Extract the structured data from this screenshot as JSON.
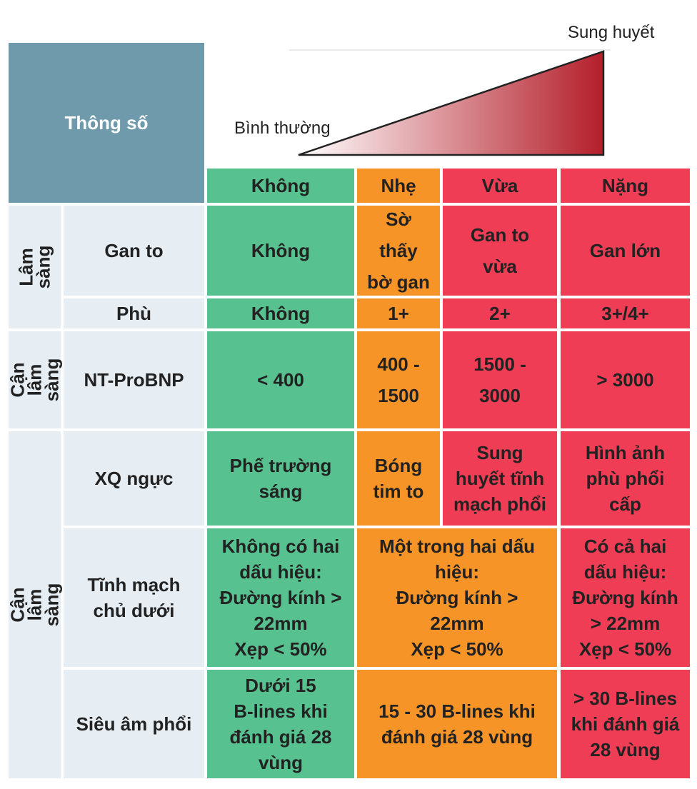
{
  "header": {
    "parameter_label": "Thông số",
    "scale": {
      "low_label": "Bình thường",
      "high_label": "Sung huyết"
    },
    "levels": [
      "Không",
      "Nhẹ",
      "Vừa",
      "Nặng"
    ]
  },
  "colors": {
    "none": "#57c18f",
    "mild": "#f79427",
    "severe": "#ef3d55",
    "header": "#6e9aab",
    "label_bg": "#e7eef3",
    "triangle_dark": "#b41f2b"
  },
  "groups": {
    "clinical": "Lâm sàng",
    "subclinical_1": "Cận lâm\nsàng",
    "subclinical_2": "Cận lâm sàng"
  },
  "rows": {
    "liver": {
      "label": "Gan to",
      "none": "Không",
      "mild": "Sờ\nthấy\nbờ gan",
      "moderate": "Gan to\nvừa",
      "severe": "Gan lớn"
    },
    "edema": {
      "label": "Phù",
      "none": "Không",
      "mild": "1+",
      "moderate": "2+",
      "severe": "3+/4+"
    },
    "bnp": {
      "label": "NT-ProBNP",
      "none": "< 400",
      "mild": "400 -\n1500",
      "moderate": "1500 -\n3000",
      "severe": "> 3000"
    },
    "xray": {
      "label": "XQ ngực",
      "none": "Phế trường\nsáng",
      "mild": "Bóng\ntim to",
      "moderate": "Sung\nhuyết tĩnh\nmạch phổi",
      "severe": "Hình ảnh\nphù phổi\ncấp"
    },
    "ivc": {
      "label": "Tĩnh mạch\nchủ dưới",
      "none": "Không có hai\ndấu hiệu:\nĐường kính >\n22mm\nXẹp < 50%",
      "mild_moderate": "Một trong hai dấu\nhiệu:\nĐường kính >\n22mm\nXẹp < 50%",
      "severe": "Có cả hai\ndấu hiệu:\nĐường kính\n> 22mm\nXẹp < 50%"
    },
    "lung_us": {
      "label": "Siêu âm phổi",
      "none": "Dưới 15\nB-lines khi\nđánh giá 28\nvùng",
      "mild_moderate": "15 - 30 B-lines khi\nđánh giá 28 vùng",
      "severe": "> 30 B-lines\nkhi đánh giá\n28 vùng"
    }
  }
}
